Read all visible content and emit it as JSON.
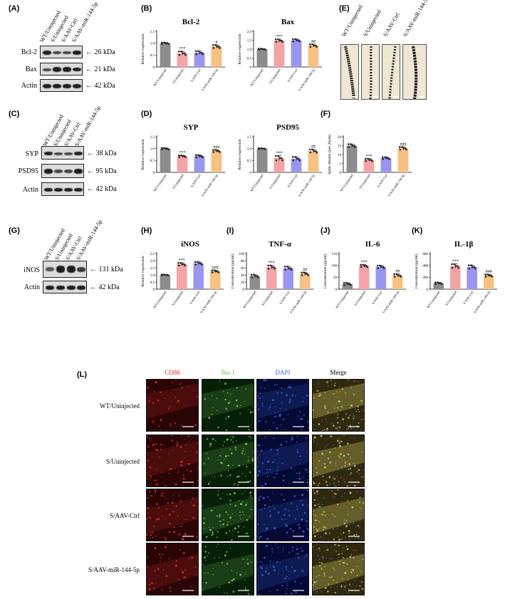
{
  "panels": {
    "A": "(A)",
    "B": "(B)",
    "C": "(C)",
    "D": "(D)",
    "E": "(E)",
    "F": "(F)",
    "G": "(G)",
    "H": "(H)",
    "I": "(I)",
    "J": "(J)",
    "K": "(K)",
    "L": "(L)"
  },
  "groups": [
    "WT/Uninjected",
    "S/Uninjected",
    "S/AAV-Ctrl",
    "S/AAV-miR-144-5p"
  ],
  "colors": {
    "wt": "#8c8c8c",
    "s": "#f4a3a6",
    "ctrl": "#9a96f0",
    "mir": "#f6c183",
    "cd86": "#e0302a",
    "iba1": "#7ccf5a",
    "dapi": "#3a64d8"
  },
  "blots": {
    "A": {
      "rows": [
        {
          "name": "Bcl-2",
          "kda": "← 26 kDa"
        },
        {
          "name": "Bax",
          "kda": "← 21 kDa"
        },
        {
          "name": "Actin",
          "kda": "← 42 kDa"
        }
      ]
    },
    "C": {
      "rows": [
        {
          "name": "SYP",
          "kda": "← 38 kDa"
        },
        {
          "name": "PSD95",
          "kda": "← 95 kDa"
        },
        {
          "name": "Actin",
          "kda": "← 42 kDa"
        }
      ]
    },
    "G": {
      "rows": [
        {
          "name": "iNOS",
          "kda": "← 131 kDa"
        },
        {
          "name": "Actin",
          "kda": "← 42 kDa"
        }
      ]
    }
  },
  "chart_data": [
    {
      "id": "bcl2",
      "type": "bar",
      "title": "Bcl-2",
      "ylabel": "Relative expression",
      "ylim": [
        0,
        1.5
      ],
      "yticks": [
        "0",
        "0.5",
        "1.0",
        "1.5"
      ],
      "categories": [
        "WT/Uninjected",
        "S/Uninjected",
        "S/AAV-Ctrl",
        "S/AAV-miR-144-5p"
      ],
      "values": [
        1.0,
        0.58,
        0.6,
        0.86
      ],
      "errors": [
        0.03,
        0.08,
        0.07,
        0.07
      ],
      "annotations": [
        "",
        "***",
        "",
        "#"
      ]
    },
    {
      "id": "bax",
      "type": "bar",
      "title": "Bax",
      "ylabel": "Relative expression",
      "ylim": [
        0,
        2.0
      ],
      "yticks": [
        "0",
        "0.5",
        "1.0",
        "1.5",
        "2.0"
      ],
      "categories": [
        "WT/Uninjected",
        "S/Uninjected",
        "S/AAV-Ctrl",
        "S/AAV-miR-144-5p"
      ],
      "values": [
        1.0,
        1.48,
        1.5,
        1.2
      ],
      "errors": [
        0.03,
        0.08,
        0.07,
        0.08
      ],
      "annotations": [
        "",
        "***",
        "",
        "##"
      ]
    },
    {
      "id": "syp",
      "type": "bar",
      "title": "SYP",
      "ylabel": "Relative expression",
      "ylim": [
        0,
        1.5
      ],
      "yticks": [
        "0",
        "0.5",
        "1.0",
        "1.5"
      ],
      "categories": [
        "WT/Uninjected",
        "S/Uninjected",
        "S/AAV-Ctrl",
        "S/AAV-miR-144-5p"
      ],
      "values": [
        1.0,
        0.68,
        0.68,
        0.9
      ],
      "errors": [
        0.03,
        0.04,
        0.05,
        0.05
      ],
      "annotations": [
        "",
        "***",
        "",
        "###"
      ]
    },
    {
      "id": "psd95",
      "type": "bar",
      "title": "PSD95",
      "ylabel": "Relative expression",
      "ylim": [
        0,
        1.5
      ],
      "yticks": [
        "0",
        "0.5",
        "1.0",
        "1.5"
      ],
      "categories": [
        "WT/Uninjected",
        "S/Uninjected",
        "S/AAV-Ctrl",
        "S/AAV-miR-144-5p"
      ],
      "values": [
        1.0,
        0.6,
        0.58,
        0.9
      ],
      "errors": [
        0.02,
        0.1,
        0.08,
        0.07
      ],
      "annotations": [
        "",
        "***",
        "",
        "##"
      ]
    },
    {
      "id": "spine",
      "type": "bar",
      "title": "",
      "ylabel": "Spine density (per 20μm)",
      "ylim": [
        0,
        20
      ],
      "yticks": [
        "0",
        "5",
        "10",
        "15",
        "20"
      ],
      "categories": [
        "WT/Uninjected",
        "S/Uninjected",
        "S/AAV-Ctrl",
        "S/AAV-miR-144-5p"
      ],
      "values": [
        15,
        7,
        8,
        13.5
      ],
      "errors": [
        0.9,
        0.7,
        0.6,
        0.8
      ],
      "annotations": [
        "",
        "***",
        "",
        "###"
      ]
    },
    {
      "id": "inos",
      "type": "bar",
      "title": "iNOS",
      "ylabel": "Relative expression",
      "ylim": [
        0,
        2.5
      ],
      "yticks": [
        "0",
        "0.5",
        "1.0",
        "1.5",
        "2.0",
        "2.5"
      ],
      "categories": [
        "WT/Uninjected",
        "S/Uninjected",
        "S/AAV-Ctrl",
        "S/AAV-miR-144-5p"
      ],
      "values": [
        1.0,
        1.75,
        1.82,
        1.25
      ],
      "errors": [
        0.03,
        0.1,
        0.1,
        0.08
      ],
      "annotations": [
        "",
        "***",
        "",
        "###"
      ]
    },
    {
      "id": "tnf",
      "type": "bar",
      "title": "TNF-α",
      "ylabel": "Concentration (pg/ml)",
      "ylim": [
        0,
        100
      ],
      "yticks": [
        "0",
        "20",
        "40",
        "60",
        "80",
        "100"
      ],
      "categories": [
        "WT/Uninjected",
        "S/Uninjected",
        "S/AAV-Ctrl",
        "S/AAV-miR-144-5p"
      ],
      "values": [
        37,
        62,
        59,
        43
      ],
      "errors": [
        4,
        5,
        5,
        4
      ],
      "annotations": [
        "",
        "***",
        "",
        "##"
      ]
    },
    {
      "id": "il6",
      "type": "bar",
      "title": "IL-6",
      "ylabel": "Concentration (pg/ml)",
      "ylim": [
        0,
        150
      ],
      "yticks": [
        "0",
        "50",
        "100",
        "150"
      ],
      "categories": [
        "WT/Uninjected",
        "S/Uninjected",
        "S/AAV-Ctrl",
        "S/AAV-miR-144-5p"
      ],
      "values": [
        22,
        98,
        94,
        58
      ],
      "errors": [
        5,
        5,
        6,
        6
      ],
      "annotations": [
        "",
        "***",
        "",
        "##"
      ]
    },
    {
      "id": "il1b",
      "type": "bar",
      "title": "IL-1β",
      "ylabel": "Concentration (pg/ml)",
      "ylim": [
        0,
        600
      ],
      "yticks": [
        "0",
        "200",
        "400",
        "600"
      ],
      "categories": [
        "WT/Uninjected",
        "S/Uninjected",
        "S/AAV-Ctrl",
        "S/AAV-miR-144-5p"
      ],
      "values": [
        100,
        390,
        375,
        230
      ],
      "errors": [
        15,
        35,
        30,
        20
      ],
      "annotations": [
        "",
        "***",
        "",
        "###"
      ]
    }
  ],
  "if": {
    "columns": [
      "CD86",
      "Iba-1",
      "DAPI",
      "Merge"
    ],
    "rows": [
      "WT/Uninjected",
      "S/Uninjected",
      "S/AAV-Ctrl",
      "S/AAV-miR-144-5p"
    ]
  }
}
